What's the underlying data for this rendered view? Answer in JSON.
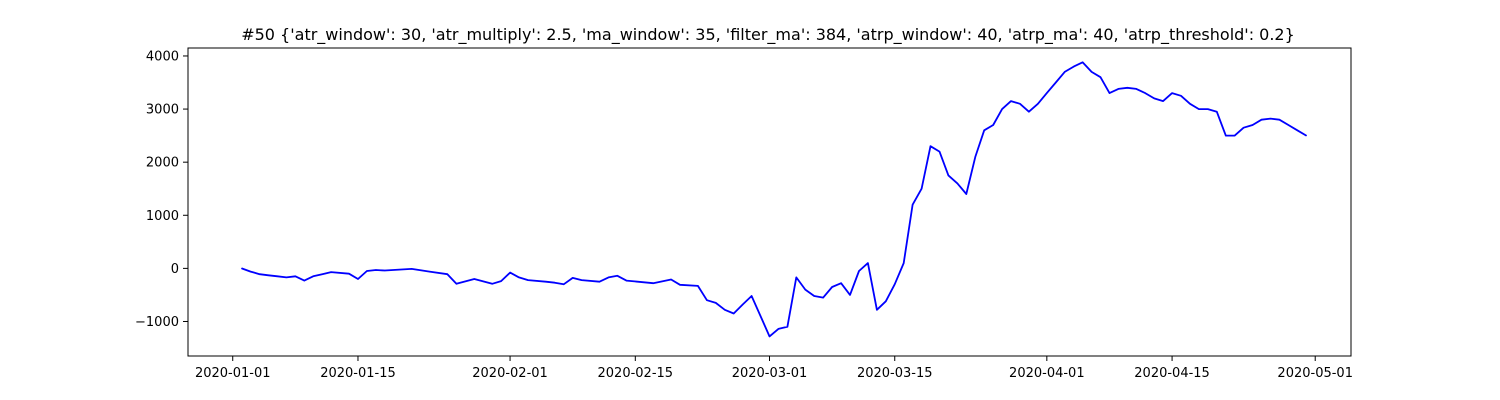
{
  "chart_data": {
    "type": "line",
    "title": "#50 {'atr_window': 30, 'atr_multiply': 2.5, 'ma_window': 35, 'filter_ma': 384, 'atrp_window': 40, 'atrp_ma': 40, 'atrp_threshold': 0.2}",
    "xlabel": "",
    "ylabel": "",
    "xlim": [
      "2019-12-27",
      "2020-05-05"
    ],
    "ylim": [
      -1650,
      4150
    ],
    "x_ticks": [
      "2020-01-01",
      "2020-01-15",
      "2020-02-01",
      "2020-02-15",
      "2020-03-01",
      "2020-03-15",
      "2020-04-01",
      "2020-04-15",
      "2020-05-01"
    ],
    "y_ticks": [
      -1000,
      0,
      1000,
      2000,
      3000,
      4000
    ],
    "y_tick_labels": [
      "−1000",
      "0",
      "1000",
      "2000",
      "3000",
      "4000"
    ],
    "grid": false,
    "series": [
      {
        "color": "#0000ff",
        "points": [
          [
            "2020-01-02",
            0
          ],
          [
            "2020-01-03",
            -60
          ],
          [
            "2020-01-04",
            -110
          ],
          [
            "2020-01-05",
            -130
          ],
          [
            "2020-01-06",
            -150
          ],
          [
            "2020-01-07",
            -170
          ],
          [
            "2020-01-08",
            -150
          ],
          [
            "2020-01-09",
            -230
          ],
          [
            "2020-01-10",
            -150
          ],
          [
            "2020-01-11",
            -110
          ],
          [
            "2020-01-12",
            -70
          ],
          [
            "2020-01-14",
            -100
          ],
          [
            "2020-01-15",
            -200
          ],
          [
            "2020-01-16",
            -50
          ],
          [
            "2020-01-17",
            -30
          ],
          [
            "2020-01-18",
            -40
          ],
          [
            "2020-01-21",
            -10
          ],
          [
            "2020-01-23",
            -60
          ],
          [
            "2020-01-25",
            -110
          ],
          [
            "2020-01-26",
            -290
          ],
          [
            "2020-01-28",
            -200
          ],
          [
            "2020-01-30",
            -290
          ],
          [
            "2020-01-31",
            -240
          ],
          [
            "2020-02-01",
            -80
          ],
          [
            "2020-02-02",
            -170
          ],
          [
            "2020-02-03",
            -220
          ],
          [
            "2020-02-05",
            -250
          ],
          [
            "2020-02-06",
            -270
          ],
          [
            "2020-02-07",
            -300
          ],
          [
            "2020-02-08",
            -180
          ],
          [
            "2020-02-09",
            -220
          ],
          [
            "2020-02-11",
            -250
          ],
          [
            "2020-02-12",
            -170
          ],
          [
            "2020-02-13",
            -140
          ],
          [
            "2020-02-14",
            -230
          ],
          [
            "2020-02-17",
            -280
          ],
          [
            "2020-02-19",
            -210
          ],
          [
            "2020-02-20",
            -310
          ],
          [
            "2020-02-22",
            -330
          ],
          [
            "2020-02-23",
            -600
          ],
          [
            "2020-02-24",
            -650
          ],
          [
            "2020-02-25",
            -780
          ],
          [
            "2020-02-26",
            -850
          ],
          [
            "2020-02-27",
            -680
          ],
          [
            "2020-02-28",
            -520
          ],
          [
            "2020-02-29",
            -900
          ],
          [
            "2020-03-01",
            -1280
          ],
          [
            "2020-03-02",
            -1140
          ],
          [
            "2020-03-03",
            -1100
          ],
          [
            "2020-03-04",
            -170
          ],
          [
            "2020-03-05",
            -400
          ],
          [
            "2020-03-06",
            -520
          ],
          [
            "2020-03-07",
            -550
          ],
          [
            "2020-03-08",
            -350
          ],
          [
            "2020-03-09",
            -280
          ],
          [
            "2020-03-10",
            -500
          ],
          [
            "2020-03-11",
            -50
          ],
          [
            "2020-03-12",
            100
          ],
          [
            "2020-03-13",
            -780
          ],
          [
            "2020-03-14",
            -620
          ],
          [
            "2020-03-15",
            -300
          ],
          [
            "2020-03-16",
            100
          ],
          [
            "2020-03-17",
            1200
          ],
          [
            "2020-03-18",
            1500
          ],
          [
            "2020-03-19",
            2300
          ],
          [
            "2020-03-20",
            2200
          ],
          [
            "2020-03-21",
            1750
          ],
          [
            "2020-03-22",
            1600
          ],
          [
            "2020-03-23",
            1400
          ],
          [
            "2020-03-24",
            2100
          ],
          [
            "2020-03-25",
            2600
          ],
          [
            "2020-03-26",
            2700
          ],
          [
            "2020-03-27",
            3000
          ],
          [
            "2020-03-28",
            3150
          ],
          [
            "2020-03-29",
            3100
          ],
          [
            "2020-03-30",
            2950
          ],
          [
            "2020-03-31",
            3100
          ],
          [
            "2020-04-01",
            3300
          ],
          [
            "2020-04-02",
            3500
          ],
          [
            "2020-04-03",
            3700
          ],
          [
            "2020-04-04",
            3800
          ],
          [
            "2020-04-05",
            3880
          ],
          [
            "2020-04-06",
            3700
          ],
          [
            "2020-04-07",
            3600
          ],
          [
            "2020-04-08",
            3300
          ],
          [
            "2020-04-09",
            3380
          ],
          [
            "2020-04-10",
            3400
          ],
          [
            "2020-04-11",
            3380
          ],
          [
            "2020-04-12",
            3300
          ],
          [
            "2020-04-13",
            3200
          ],
          [
            "2020-04-14",
            3150
          ],
          [
            "2020-04-15",
            3300
          ],
          [
            "2020-04-16",
            3250
          ],
          [
            "2020-04-17",
            3100
          ],
          [
            "2020-04-18",
            3000
          ],
          [
            "2020-04-19",
            3000
          ],
          [
            "2020-04-20",
            2950
          ],
          [
            "2020-04-21",
            2500
          ],
          [
            "2020-04-22",
            2500
          ],
          [
            "2020-04-23",
            2650
          ],
          [
            "2020-04-24",
            2700
          ],
          [
            "2020-04-25",
            2800
          ],
          [
            "2020-04-26",
            2820
          ],
          [
            "2020-04-27",
            2800
          ],
          [
            "2020-04-28",
            2700
          ],
          [
            "2020-04-29",
            2600
          ],
          [
            "2020-04-30",
            2500
          ]
        ]
      }
    ]
  }
}
